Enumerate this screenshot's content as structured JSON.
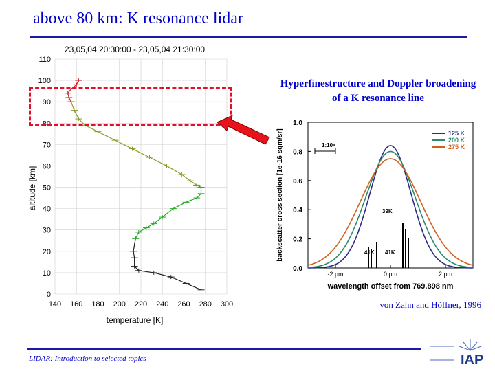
{
  "slide": {
    "title": "above 80 km: K resonance lidar",
    "caption": "Hyperfinestructure and Doppler broadening of a K resonance line",
    "citation": "von Zahn and Höffner, 1996",
    "footer": "LIDAR: Introduction to selected topics",
    "logo_text": "IAP"
  },
  "chart_data": [
    {
      "type": "line",
      "title": "23,05,04 20:30:00 - 23,05,04 21:30:00",
      "xlabel": "temperature [K]",
      "ylabel": "altitude [km]",
      "xlim": [
        140,
        300
      ],
      "ylim": [
        0,
        110
      ],
      "xticks": [
        140,
        160,
        180,
        200,
        220,
        240,
        260,
        280,
        300
      ],
      "yticks": [
        0,
        10,
        20,
        30,
        40,
        50,
        60,
        70,
        80,
        90,
        100,
        110
      ],
      "grid": true,
      "series": [
        {
          "color": "#222222",
          "points": [
            [
              276,
              2
            ],
            [
              262,
              5
            ],
            [
              248,
              8
            ],
            [
              232,
              10
            ],
            [
              218,
              11
            ],
            [
              214,
              13
            ],
            [
              214,
              17
            ],
            [
              213,
              20
            ],
            [
              214,
              23
            ],
            [
              215,
              26
            ]
          ]
        },
        {
          "color": "#22aa22",
          "points": [
            [
              215,
              26
            ],
            [
              218,
              29
            ],
            [
              225,
              31
            ],
            [
              232,
              33
            ],
            [
              240,
              36
            ],
            [
              250,
              40
            ],
            [
              262,
              43
            ],
            [
              272,
              45
            ],
            [
              276,
              47
            ],
            [
              276,
              50
            ],
            [
              272,
              51
            ]
          ]
        },
        {
          "color": "#8a9a20",
          "points": [
            [
              272,
              51
            ],
            [
              266,
              53
            ],
            [
              258,
              56
            ],
            [
              244,
              60
            ],
            [
              228,
              64
            ],
            [
              212,
              68
            ],
            [
              196,
              72
            ],
            [
              180,
              76
            ],
            [
              168,
              79
            ],
            [
              162,
              82
            ],
            [
              158,
              86
            ],
            [
              155,
              90
            ]
          ]
        },
        {
          "color": "#cc2222",
          "points": [
            [
              155,
              90
            ],
            [
              153,
              92
            ],
            [
              152,
              94
            ],
            [
              155,
              96
            ],
            [
              160,
              98
            ],
            [
              162,
              100
            ]
          ]
        }
      ]
    },
    {
      "type": "line",
      "xlabel": "wavelength offset from 769.898 nm",
      "ylabel": "backscatter cross section [1e-16 sqm/sr]",
      "ylim": [
        0,
        1.0
      ],
      "yticks": [
        0.0,
        0.2,
        0.4,
        0.6,
        0.8,
        1.0
      ],
      "xtick_labels": [
        "-2 pm",
        "0 pm",
        "2 pm"
      ],
      "legend_position": "top-right",
      "annotations": [
        "1:10⁶",
        "39K",
        "41K",
        "41K"
      ],
      "series": [
        {
          "name": "125 K",
          "color": "#2a2a8a",
          "peak": 0.84,
          "width_pm": 0.75
        },
        {
          "name": "200 K",
          "color": "#2a8a6a",
          "peak": 0.8,
          "width_pm": 0.9
        },
        {
          "name": "275 K",
          "color": "#d06020",
          "peak": 0.75,
          "width_pm": 1.1
        }
      ]
    }
  ]
}
